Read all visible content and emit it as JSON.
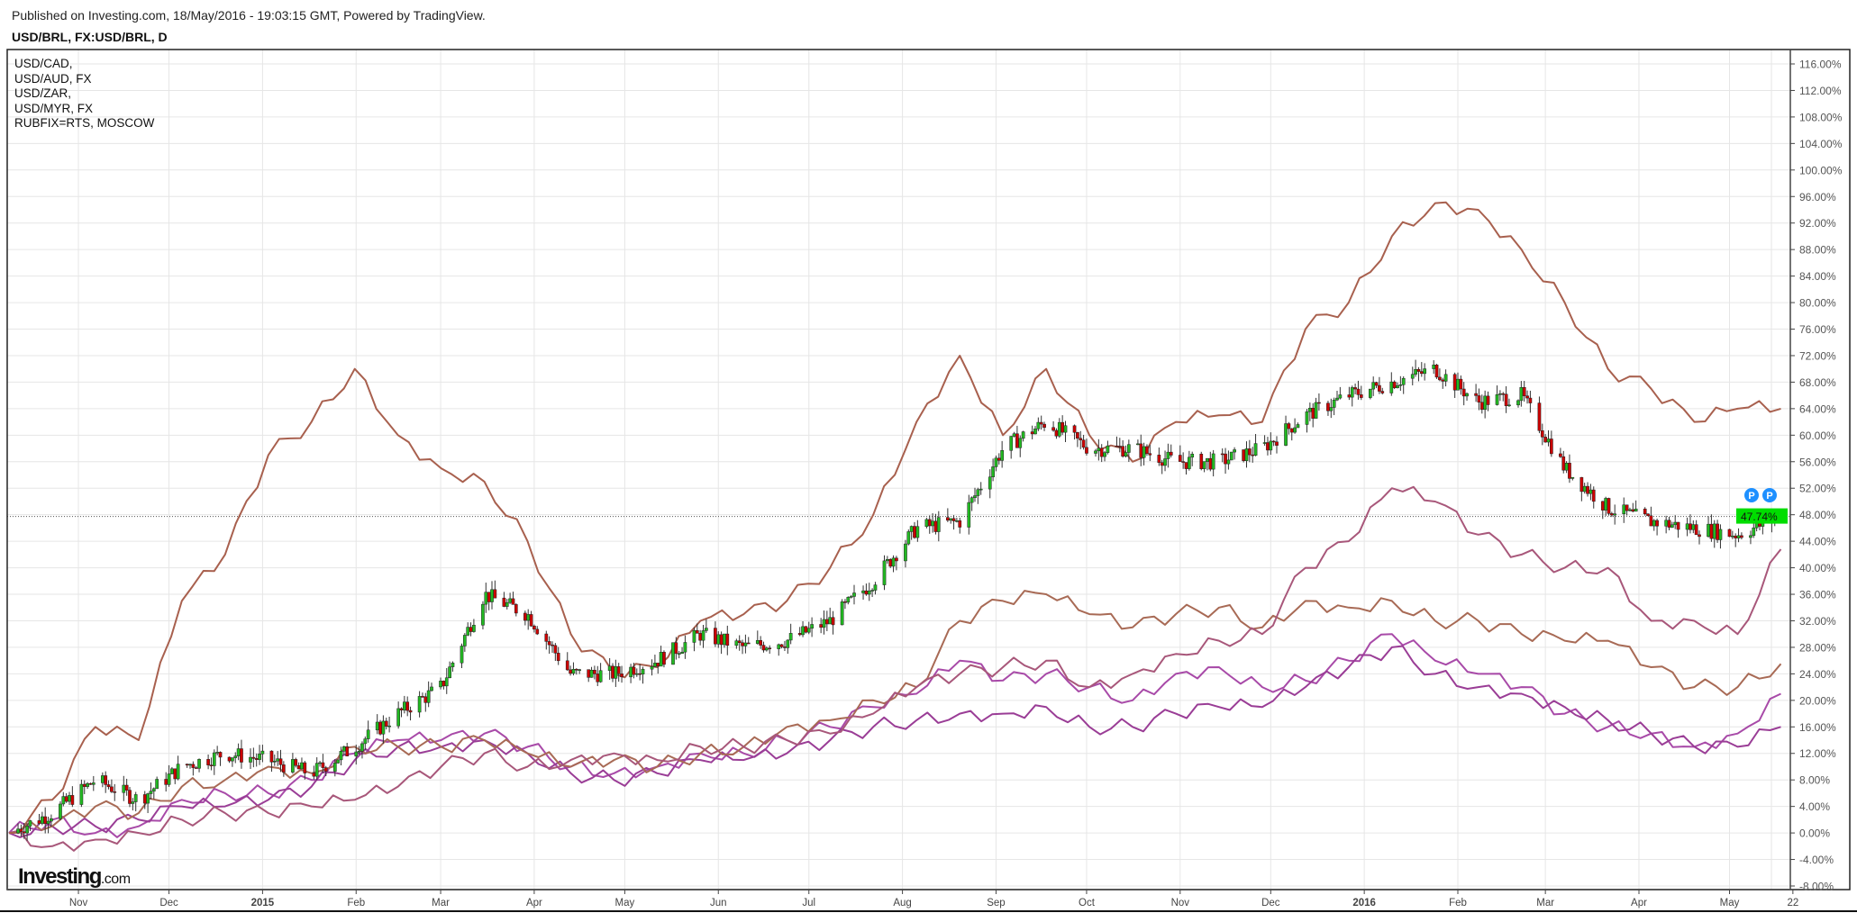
{
  "header": {
    "published": "Published on Investing.com, 18/May/2016 - 19:03:15 GMT, Powered by TradingView.",
    "symbol": "USD/BRL, FX:USD/BRL, D"
  },
  "logo": {
    "brand": "Investing",
    "suffix": ".com"
  },
  "chart_data": {
    "type": "line",
    "title": "USD/BRL, FX:USD/BRL, D",
    "x_unit": "days since 2014-10-09",
    "x_range": [
      0,
      587
    ],
    "ylim": [
      -9,
      118
    ],
    "y_ticks": [
      -8,
      -4,
      0,
      4,
      8,
      12,
      16,
      20,
      24,
      28,
      32,
      36,
      40,
      44,
      48,
      52,
      56,
      60,
      64,
      68,
      72,
      76,
      80,
      84,
      88,
      92,
      96,
      100,
      104,
      108,
      112,
      116
    ],
    "y_tick_suffix": ".00%",
    "x_ticks": [
      {
        "label": "Nov",
        "day": 23
      },
      {
        "label": "Dec",
        "day": 53
      },
      {
        "label": "2015",
        "day": 84,
        "bold": true
      },
      {
        "label": "Feb",
        "day": 115
      },
      {
        "label": "Mar",
        "day": 143
      },
      {
        "label": "Apr",
        "day": 174
      },
      {
        "label": "May",
        "day": 204
      },
      {
        "label": "Jun",
        "day": 235
      },
      {
        "label": "Jul",
        "day": 265
      },
      {
        "label": "Aug",
        "day": 296
      },
      {
        "label": "Sep",
        "day": 327
      },
      {
        "label": "Oct",
        "day": 357
      },
      {
        "label": "Nov",
        "day": 388
      },
      {
        "label": "Dec",
        "day": 418
      },
      {
        "label": "2016",
        "day": 449,
        "bold": true
      },
      {
        "label": "Feb",
        "day": 480
      },
      {
        "label": "Mar",
        "day": 509
      },
      {
        "label": "Apr",
        "day": 540
      },
      {
        "label": "May",
        "day": 570
      },
      {
        "label": "22",
        "day": 591
      }
    ],
    "grid": true,
    "legend_position": "top-left",
    "last_value": {
      "label": "47.74%",
      "value": 47.74,
      "color": "#00dd00"
    },
    "main_series": {
      "name": "USD/BRL",
      "style": "candles",
      "up_color": "#22b922",
      "down_color": "#cc0000",
      "closes": [
        0,
        3,
        8,
        5,
        10,
        12,
        11,
        9,
        13,
        18,
        22,
        36,
        33,
        24,
        24,
        26,
        30,
        28,
        29,
        32,
        38,
        46,
        47,
        58,
        62,
        58,
        58,
        56,
        56,
        58,
        63,
        66,
        68,
        70,
        65,
        66,
        55,
        49,
        47,
        46,
        45,
        47.74
      ]
    },
    "series": [
      {
        "name": "USD/CAD,",
        "color": "#a84aa8",
        "values": [
          0,
          2,
          0,
          1,
          5,
          6,
          6,
          8,
          12,
          14,
          14,
          15,
          13,
          10,
          9,
          10,
          12,
          12,
          14,
          16,
          19,
          21,
          26,
          23,
          24,
          22,
          20,
          24,
          25,
          22,
          23,
          26,
          30,
          26,
          24,
          22,
          18,
          16,
          15,
          13,
          15,
          21
        ]
      },
      {
        "name": "USD/AUD, FX",
        "color": "#9a3d96",
        "values": [
          0,
          1,
          1,
          2,
          4,
          4,
          5,
          7,
          11,
          13,
          13,
          14,
          12,
          9,
          8,
          9,
          11,
          11,
          12,
          14,
          16,
          17,
          18,
          18,
          19,
          16,
          16,
          18,
          19,
          19,
          22,
          25,
          28,
          24,
          22,
          21,
          19,
          17,
          15,
          13,
          13,
          16
        ]
      },
      {
        "name": "USD/ZAR,",
        "color": "#a86a55",
        "values": [
          0,
          1,
          4,
          3,
          7,
          8,
          10,
          9,
          13,
          13,
          13,
          14,
          12,
          10,
          11,
          10,
          12,
          13,
          16,
          17,
          20,
          22,
          32,
          35,
          36,
          33,
          31,
          33,
          34,
          31,
          35,
          34,
          35,
          32,
          32,
          30,
          29,
          29,
          25,
          22,
          22,
          25.5
        ]
      },
      {
        "name": "USD/MYR, FX",
        "color": "#a8577a",
        "values": [
          0,
          -2,
          -1,
          0,
          2,
          3,
          3,
          4,
          5,
          7,
          10,
          12,
          10,
          11,
          12,
          11,
          13,
          13,
          14,
          15,
          18,
          22,
          24,
          25,
          26,
          22,
          24,
          27,
          29,
          30,
          40,
          44,
          52,
          50,
          45,
          42,
          40,
          40,
          32,
          32,
          30,
          42.8
        ]
      },
      {
        "name": "RUBFIX=RTS, MOSCOW",
        "color": "#a8604e",
        "values": [
          0,
          5,
          16,
          14,
          35,
          42,
          57,
          62,
          70,
          60,
          55,
          53,
          44,
          30,
          24,
          25,
          32,
          33,
          35,
          40,
          48,
          62,
          72,
          60,
          70,
          60,
          56,
          62,
          63,
          62,
          76,
          80,
          90,
          95,
          94,
          88,
          80,
          70,
          67,
          62,
          64,
          64
        ]
      }
    ]
  }
}
